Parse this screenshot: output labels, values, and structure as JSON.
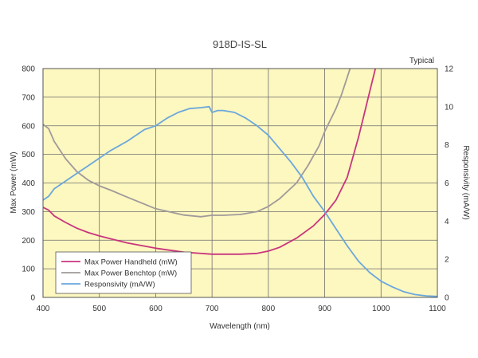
{
  "chart_data": {
    "type": "line",
    "title": "918D-IS-SL",
    "annotation": "Typical",
    "xlabel": "Wavelength (nm)",
    "ylabel": "Max Power (mW)",
    "y2label": "Responsivity (mA/W)",
    "xlim": [
      400,
      1100
    ],
    "ylim": [
      0,
      800
    ],
    "y2lim": [
      0,
      12
    ],
    "xticks": [
      400,
      500,
      600,
      700,
      800,
      900,
      1000,
      1100
    ],
    "xtick_labels": [
      "400",
      "500",
      "600",
      "700",
      "800",
      "900",
      "1000",
      "1100"
    ],
    "yticks": [
      0,
      100,
      200,
      300,
      400,
      500,
      600,
      700,
      800
    ],
    "y2ticks": [
      0,
      2,
      4,
      6,
      8,
      10,
      12
    ],
    "grid": true,
    "legend_position": "bottom-left",
    "series": [
      {
        "name": "Max Power Handheld (mW)",
        "axis": "left",
        "color": "#c8357e",
        "x": [
          400,
          410,
          420,
          440,
          460,
          480,
          500,
          520,
          550,
          600,
          650,
          700,
          750,
          780,
          800,
          820,
          850,
          880,
          900,
          920,
          940,
          960,
          970,
          980,
          990,
          1000
        ],
        "y": [
          315,
          305,
          285,
          262,
          242,
          227,
          215,
          205,
          190,
          172,
          158,
          151,
          151,
          154,
          162,
          175,
          207,
          250,
          290,
          340,
          420,
          560,
          640,
          720,
          800,
          880
        ]
      },
      {
        "name": "Max Power Benchtop (mW)",
        "axis": "left",
        "color": "#a09a9a",
        "x": [
          400,
          410,
          420,
          440,
          460,
          480,
          500,
          520,
          550,
          600,
          650,
          680,
          700,
          720,
          750,
          780,
          800,
          820,
          850,
          870,
          890,
          900,
          910,
          920,
          930,
          940,
          950
        ],
        "y": [
          605,
          590,
          545,
          485,
          440,
          410,
          390,
          375,
          350,
          310,
          288,
          282,
          287,
          287,
          290,
          300,
          318,
          345,
          400,
          460,
          530,
          580,
          620,
          660,
          710,
          770,
          830
        ]
      },
      {
        "name": "Responsivity (mA/W)",
        "axis": "right",
        "color": "#6aa7dc",
        "x": [
          400,
          410,
          420,
          440,
          460,
          480,
          500,
          520,
          550,
          580,
          600,
          620,
          640,
          660,
          680,
          695,
          700,
          710,
          720,
          740,
          760,
          780,
          800,
          820,
          840,
          860,
          880,
          900,
          920,
          940,
          960,
          980,
          1000,
          1020,
          1040,
          1060,
          1080,
          1100
        ],
        "y": [
          5.1,
          5.3,
          5.7,
          6.1,
          6.5,
          6.9,
          7.3,
          7.7,
          8.2,
          8.8,
          9.0,
          9.4,
          9.7,
          9.9,
          9.95,
          10.0,
          9.7,
          9.8,
          9.8,
          9.7,
          9.4,
          9.0,
          8.5,
          7.8,
          7.1,
          6.3,
          5.3,
          4.5,
          3.6,
          2.7,
          1.9,
          1.3,
          0.85,
          0.55,
          0.3,
          0.15,
          0.08,
          0.05
        ]
      }
    ]
  }
}
